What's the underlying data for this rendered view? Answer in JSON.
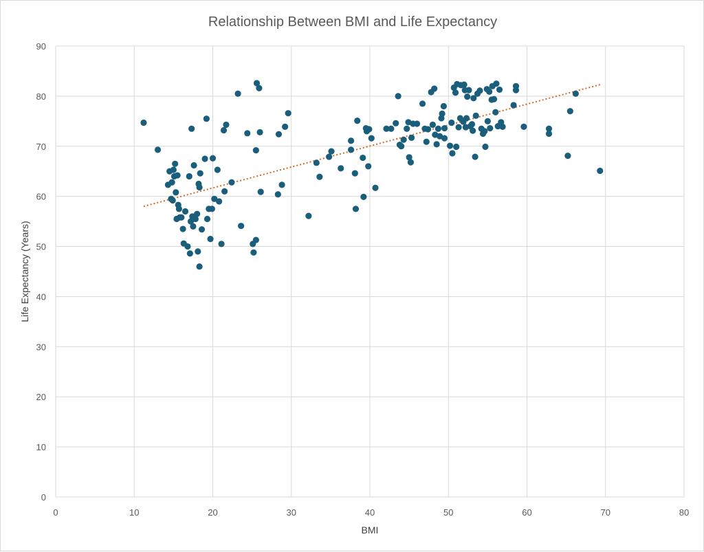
{
  "chart_data": {
    "type": "scatter",
    "title": "Relationship Between BMI and Life Expectancy",
    "xlabel": "BMI",
    "ylabel": "Life Expectancy (Years)",
    "xlim": [
      0,
      80
    ],
    "ylim": [
      0,
      90
    ],
    "x_ticks": [
      0,
      10,
      20,
      30,
      40,
      50,
      60,
      70,
      80
    ],
    "y_ticks": [
      0,
      10,
      20,
      30,
      40,
      50,
      60,
      70,
      80,
      90
    ],
    "grid": true,
    "legend": "none",
    "marker_color": "#1b5e7b",
    "trendline": {
      "type": "linear",
      "color": "#d2691e",
      "style": "dotted",
      "x_start": 11.2,
      "y_start": 58.0,
      "x_end": 69.3,
      "y_end": 82.3
    },
    "points": [
      [
        11.2,
        74.7
      ],
      [
        13.0,
        69.3
      ],
      [
        14.3,
        62.3
      ],
      [
        14.5,
        65.0
      ],
      [
        14.7,
        59.5
      ],
      [
        14.8,
        62.8
      ],
      [
        14.9,
        59.2
      ],
      [
        15.0,
        65.3
      ],
      [
        15.1,
        64.0
      ],
      [
        15.2,
        66.5
      ],
      [
        15.3,
        60.8
      ],
      [
        15.4,
        55.5
      ],
      [
        15.5,
        64.2
      ],
      [
        15.6,
        58.3
      ],
      [
        15.7,
        57.5
      ],
      [
        15.8,
        55.8
      ],
      [
        16.0,
        55.8
      ],
      [
        16.2,
        53.5
      ],
      [
        16.3,
        50.6
      ],
      [
        16.5,
        57.0
      ],
      [
        16.8,
        50.0
      ],
      [
        17.0,
        64.0
      ],
      [
        17.1,
        48.6
      ],
      [
        17.2,
        55.0
      ],
      [
        17.3,
        73.5
      ],
      [
        17.4,
        56.0
      ],
      [
        17.5,
        54.0
      ],
      [
        17.6,
        66.2
      ],
      [
        17.8,
        55.5
      ],
      [
        18.0,
        56.5
      ],
      [
        18.1,
        49.0
      ],
      [
        18.2,
        62.5
      ],
      [
        18.3,
        46.0
      ],
      [
        18.3,
        61.8
      ],
      [
        18.4,
        64.6
      ],
      [
        18.6,
        53.4
      ],
      [
        19.0,
        67.5
      ],
      [
        19.2,
        75.5
      ],
      [
        19.3,
        55.5
      ],
      [
        19.5,
        57.5
      ],
      [
        19.7,
        51.5
      ],
      [
        19.9,
        57.5
      ],
      [
        20.0,
        67.6
      ],
      [
        20.2,
        59.5
      ],
      [
        20.6,
        65.3
      ],
      [
        20.8,
        59.0
      ],
      [
        21.1,
        50.5
      ],
      [
        21.4,
        73.2
      ],
      [
        21.5,
        61.0
      ],
      [
        21.7,
        74.3
      ],
      [
        22.4,
        62.8
      ],
      [
        23.2,
        80.5
      ],
      [
        23.6,
        54.1
      ],
      [
        24.4,
        72.6
      ],
      [
        25.1,
        50.5
      ],
      [
        25.2,
        48.8
      ],
      [
        25.5,
        51.3
      ],
      [
        25.5,
        69.2
      ],
      [
        25.6,
        82.6
      ],
      [
        25.9,
        81.6
      ],
      [
        26.0,
        72.8
      ],
      [
        26.1,
        60.9
      ],
      [
        28.3,
        60.4
      ],
      [
        28.4,
        72.4
      ],
      [
        28.8,
        62.3
      ],
      [
        29.2,
        73.9
      ],
      [
        29.6,
        76.6
      ],
      [
        32.2,
        56.1
      ],
      [
        33.2,
        66.7
      ],
      [
        33.6,
        63.9
      ],
      [
        34.8,
        67.9
      ],
      [
        35.1,
        69.0
      ],
      [
        36.3,
        65.6
      ],
      [
        37.6,
        71.1
      ],
      [
        37.6,
        69.3
      ],
      [
        38.1,
        64.6
      ],
      [
        38.2,
        57.5
      ],
      [
        38.4,
        75.1
      ],
      [
        39.1,
        67.7
      ],
      [
        39.2,
        59.9
      ],
      [
        39.5,
        73.6
      ],
      [
        39.6,
        73.0
      ],
      [
        39.8,
        66.0
      ],
      [
        39.9,
        73.4
      ],
      [
        40.2,
        71.6
      ],
      [
        40.7,
        61.7
      ],
      [
        42.1,
        73.5
      ],
      [
        42.7,
        73.5
      ],
      [
        43.3,
        74.6
      ],
      [
        43.6,
        80.0
      ],
      [
        43.8,
        70.3
      ],
      [
        44.0,
        70.0
      ],
      [
        44.3,
        71.3
      ],
      [
        44.7,
        73.5
      ],
      [
        44.9,
        74.8
      ],
      [
        45.0,
        67.8
      ],
      [
        45.2,
        66.8
      ],
      [
        45.3,
        71.7
      ],
      [
        45.5,
        74.5
      ],
      [
        46.0,
        74.5
      ],
      [
        46.7,
        78.5
      ],
      [
        47.0,
        73.5
      ],
      [
        47.2,
        70.9
      ],
      [
        47.4,
        73.4
      ],
      [
        47.8,
        80.8
      ],
      [
        48.0,
        74.3
      ],
      [
        48.2,
        81.5
      ],
      [
        48.3,
        72.3
      ],
      [
        48.5,
        70.4
      ],
      [
        48.7,
        73.5
      ],
      [
        48.9,
        72.0
      ],
      [
        49.1,
        75.6
      ],
      [
        49.2,
        76.5
      ],
      [
        49.4,
        78.0
      ],
      [
        49.5,
        73.6
      ],
      [
        49.5,
        71.6
      ],
      [
        50.2,
        70.1
      ],
      [
        50.4,
        74.7
      ],
      [
        50.5,
        68.6
      ],
      [
        50.7,
        81.7
      ],
      [
        50.9,
        80.7
      ],
      [
        51.0,
        69.9
      ],
      [
        51.1,
        82.4
      ],
      [
        51.3,
        73.8
      ],
      [
        51.5,
        75.6
      ],
      [
        51.6,
        82.2
      ],
      [
        51.9,
        74.9
      ],
      [
        52.0,
        82.3
      ],
      [
        52.1,
        81.2
      ],
      [
        52.2,
        73.8
      ],
      [
        52.3,
        75.6
      ],
      [
        52.4,
        79.9
      ],
      [
        52.6,
        81.2
      ],
      [
        52.8,
        74.0
      ],
      [
        53.0,
        74.4
      ],
      [
        53.1,
        73.1
      ],
      [
        53.2,
        79.6
      ],
      [
        53.4,
        67.9
      ],
      [
        53.5,
        76.1
      ],
      [
        53.7,
        80.5
      ],
      [
        54.0,
        81.1
      ],
      [
        54.2,
        73.5
      ],
      [
        54.4,
        72.5
      ],
      [
        54.6,
        73.0
      ],
      [
        54.7,
        69.9
      ],
      [
        54.9,
        81.4
      ],
      [
        55.0,
        75.0
      ],
      [
        55.2,
        80.9
      ],
      [
        55.3,
        73.6
      ],
      [
        55.5,
        79.3
      ],
      [
        55.6,
        82.0
      ],
      [
        55.8,
        79.4
      ],
      [
        56.0,
        76.8
      ],
      [
        56.1,
        82.5
      ],
      [
        56.3,
        74.0
      ],
      [
        56.5,
        81.3
      ],
      [
        56.7,
        74.8
      ],
      [
        56.9,
        73.9
      ],
      [
        58.3,
        78.2
      ],
      [
        58.6,
        81.2
      ],
      [
        58.6,
        82.0
      ],
      [
        59.6,
        73.9
      ],
      [
        62.8,
        72.5
      ],
      [
        62.8,
        73.5
      ],
      [
        65.2,
        68.1
      ],
      [
        65.5,
        77.0
      ],
      [
        66.2,
        80.5
      ],
      [
        69.3,
        65.1
      ]
    ]
  }
}
